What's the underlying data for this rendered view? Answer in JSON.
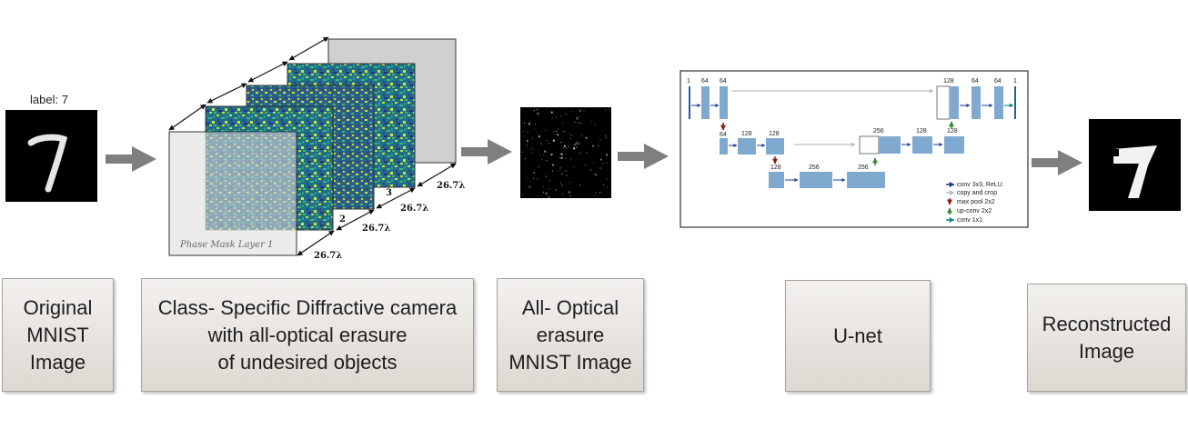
{
  "input": {
    "label": "label: 7"
  },
  "masks": {
    "first_layer_label": "Phase Mask Layer 1",
    "layer_numbers": [
      "2",
      "3"
    ],
    "spacing": "26.7λ"
  },
  "unet": {
    "channels": {
      "enc1": [
        "1",
        "64",
        "64"
      ],
      "enc2": [
        "64",
        "128",
        "128"
      ],
      "bottom": [
        "128",
        "256",
        "256"
      ],
      "dec2": [
        "256",
        "128",
        "128"
      ],
      "dec1": [
        "128",
        "64",
        "64",
        "1"
      ]
    },
    "legend": [
      {
        "text": "conv 3x3, ReLU",
        "color": "#1f3a93"
      },
      {
        "text": "copy and crop",
        "color": "#bdbdbd"
      },
      {
        "text": "max pool 2x2",
        "color": "#8b1a1a"
      },
      {
        "text": "up-conv 2x2",
        "color": "#2e8b2e"
      },
      {
        "text": "conv 1x1",
        "color": "#1a8a7a"
      }
    ],
    "block_color": "#7fa9cf"
  },
  "captions": {
    "original": "Original\nMNIST\nImage",
    "camera": "Class- Specific Diffractive camera\nwith all-optical erasure\nof undesired objects",
    "erasure": "All- Optical\nerasure\nMNIST Image",
    "unet": "U-net",
    "reconstructed": "Reconstructed\nImage"
  }
}
